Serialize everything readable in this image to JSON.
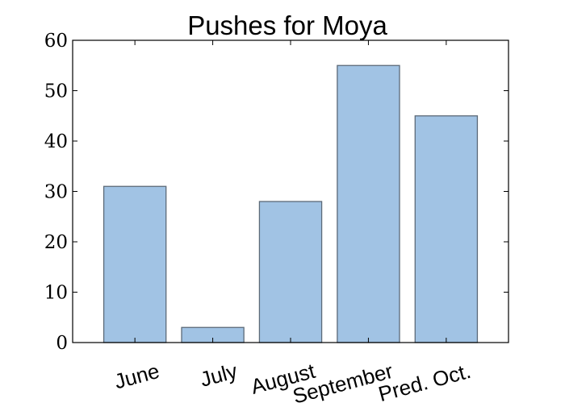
{
  "chart_data": {
    "type": "bar",
    "title": "Pushes for Moya",
    "xlabel": "",
    "ylabel": "",
    "categories": [
      "June",
      "July",
      "August",
      "September",
      "Pred. Oct."
    ],
    "values": [
      31,
      3,
      28,
      55,
      45
    ],
    "ylim": [
      0,
      60
    ],
    "yticks": [
      "0",
      "10",
      "20",
      "30",
      "40",
      "50",
      "60"
    ],
    "grid": false,
    "legend": "none",
    "colors": {
      "bar_fill": "#a1c3e4",
      "bar_edge": "#5c6a78",
      "axis": "#000000"
    }
  }
}
